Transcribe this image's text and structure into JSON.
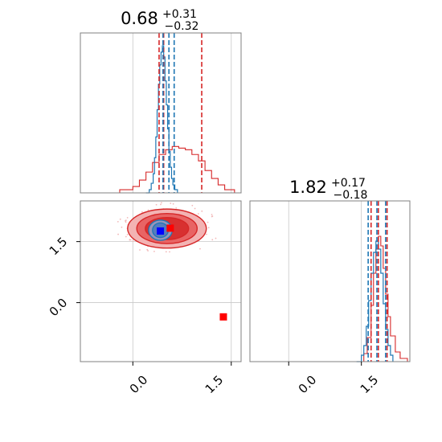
{
  "chart_data": {
    "type": "corner",
    "series": [
      {
        "name": "",
        "color": "#1f77b4"
      },
      {
        "name": "",
        "color": "#d62728"
      }
    ],
    "params": [
      {
        "title": {
          "median": "0.68",
          "plus": "+0.31",
          "minus": "−0.32"
        },
        "range": [
          -0.8,
          1.65
        ],
        "ticks": [
          "0.0",
          "1.5"
        ],
        "hist_blue": {
          "x": [
            0.2,
            0.25,
            0.28,
            0.31,
            0.33,
            0.35,
            0.37,
            0.39,
            0.41,
            0.43,
            0.45,
            0.47,
            0.49,
            0.51,
            0.53,
            0.55,
            0.57,
            0.59,
            0.61,
            0.64,
            0.68
          ],
          "y": [
            0.0,
            0.02,
            0.06,
            0.12,
            0.22,
            0.35,
            0.52,
            0.68,
            0.8,
            0.88,
            0.92,
            0.85,
            0.7,
            0.55,
            0.4,
            0.26,
            0.16,
            0.09,
            0.05,
            0.02,
            0.0
          ]
        },
        "hist_red": {
          "x": [
            -0.4,
            -0.2,
            0.0,
            0.1,
            0.2,
            0.3,
            0.4,
            0.5,
            0.6,
            0.7,
            0.8,
            0.9,
            1.0,
            1.1,
            1.2,
            1.3,
            1.4,
            1.55
          ],
          "y": [
            0.0,
            0.02,
            0.04,
            0.08,
            0.13,
            0.19,
            0.24,
            0.27,
            0.29,
            0.28,
            0.27,
            0.24,
            0.2,
            0.14,
            0.09,
            0.05,
            0.02,
            0.0
          ]
        },
        "quantiles_blue": [
          0.46,
          0.55,
          0.63
        ],
        "quantiles_red": [
          0.4,
          0.47,
          1.05
        ]
      },
      {
        "title": {
          "median": "1.82",
          "plus": "+0.17",
          "minus": "−0.18"
        },
        "range": [
          -0.8,
          2.5
        ],
        "ticks": [
          "0.0",
          "1.5"
        ],
        "hist_blue": {
          "x": [
            1.4,
            1.5,
            1.55,
            1.6,
            1.65,
            1.7,
            1.75,
            1.8,
            1.85,
            1.9,
            1.95,
            2.0,
            2.05,
            2.1,
            2.15
          ],
          "y": [
            0.0,
            0.04,
            0.1,
            0.22,
            0.38,
            0.55,
            0.68,
            0.75,
            0.7,
            0.55,
            0.36,
            0.2,
            0.1,
            0.04,
            0.0
          ]
        },
        "hist_red": {
          "x": [
            1.45,
            1.55,
            1.62,
            1.7,
            1.75,
            1.8,
            1.85,
            1.9,
            1.95,
            2.0,
            2.05,
            2.1,
            2.2,
            2.3,
            2.45
          ],
          "y": [
            0.0,
            0.05,
            0.15,
            0.35,
            0.55,
            0.7,
            0.78,
            0.72,
            0.58,
            0.42,
            0.28,
            0.16,
            0.06,
            0.02,
            0.0
          ]
        },
        "quantiles_blue": [
          1.64,
          1.82,
          2.0
        ],
        "quantiles_red": [
          1.7,
          1.85,
          2.03
        ]
      }
    ],
    "joint": {
      "xrange": [
        -0.8,
        1.65
      ],
      "yrange": [
        -1.45,
        2.5
      ],
      "xticks": [
        "0.0",
        "1.5"
      ],
      "yticks": [
        "1.5",
        "0.0"
      ],
      "red_contours": {
        "center": [
          0.52,
          1.82
        ],
        "radii": [
          [
            0.6,
            0.48
          ],
          [
            0.46,
            0.37
          ],
          [
            0.33,
            0.27
          ]
        ]
      },
      "blue_contours": {
        "center": [
          0.42,
          1.78
        ],
        "radii": [
          [
            0.18,
            0.25
          ],
          [
            0.12,
            0.18
          ]
        ]
      },
      "markers": [
        {
          "x": 0.42,
          "y": 1.76,
          "color": "#0000ff"
        },
        {
          "x": 0.57,
          "y": 1.83,
          "color": "#ff0000"
        },
        {
          "x": 1.38,
          "y": -0.35,
          "color": "#ff0000"
        }
      ]
    }
  }
}
